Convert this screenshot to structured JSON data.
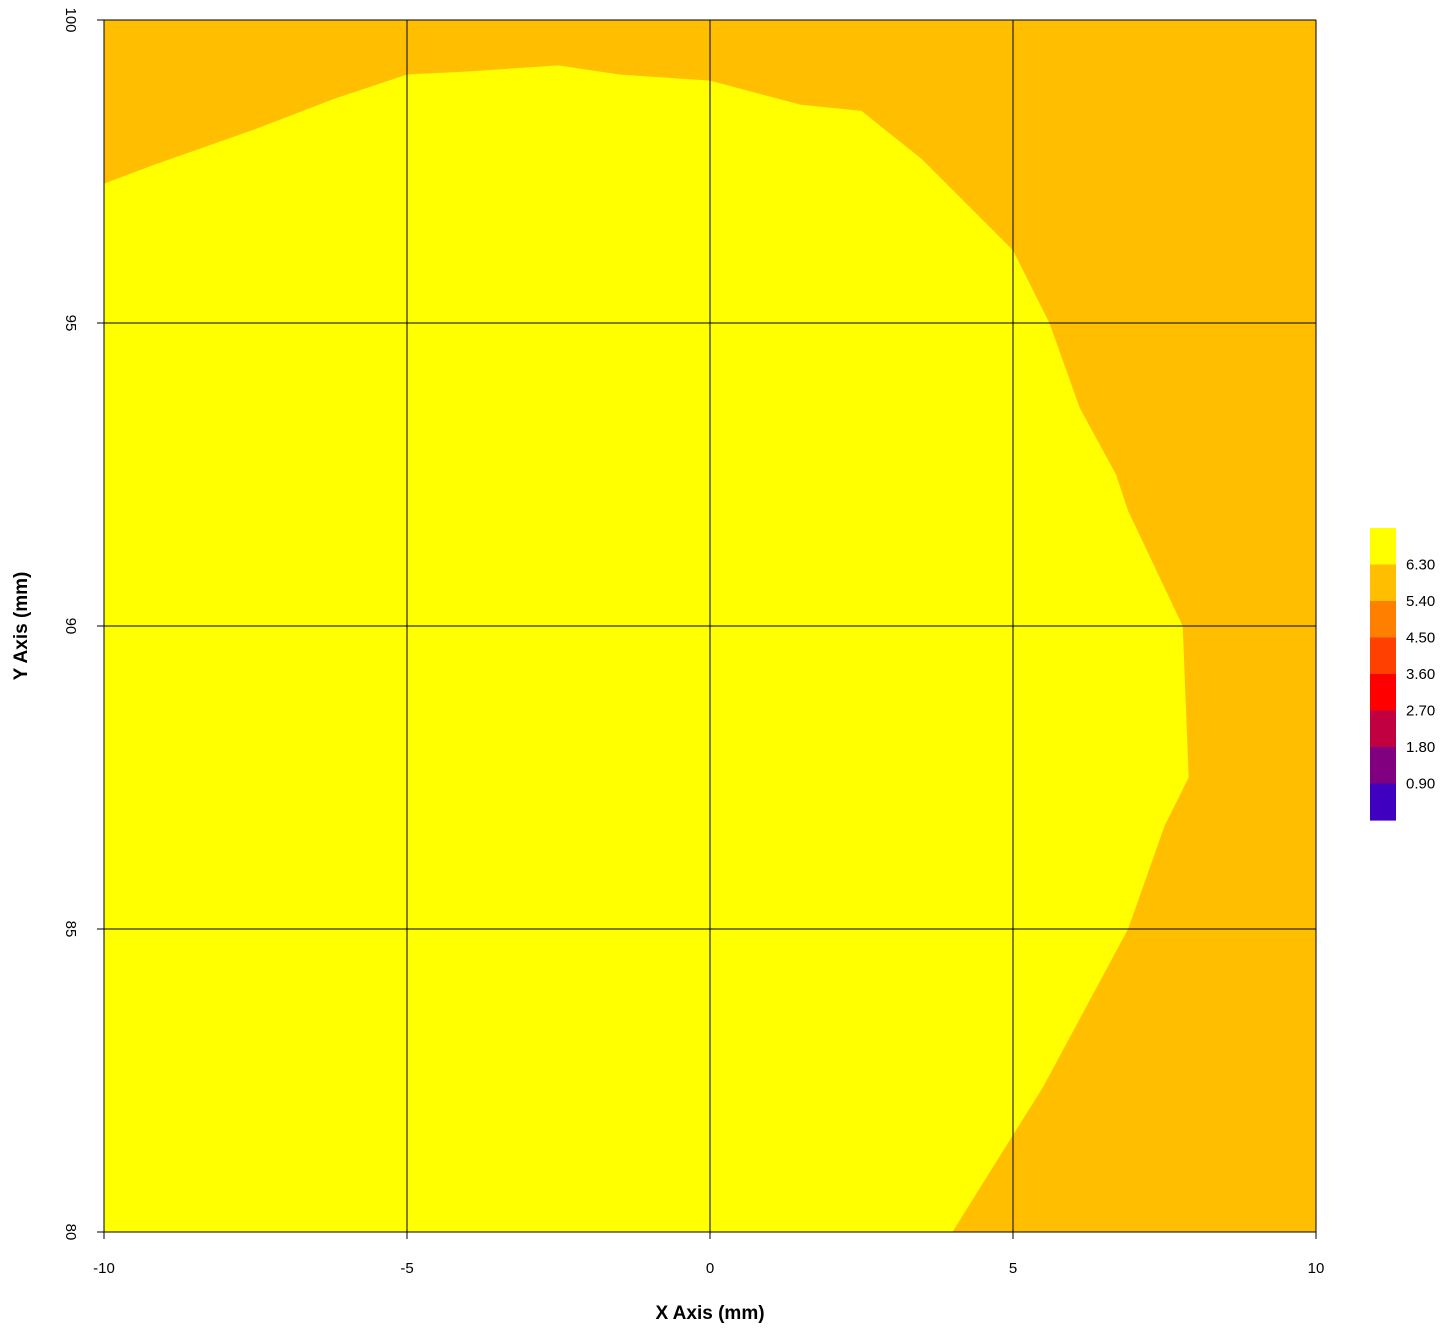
{
  "chart_data": {
    "type": "filled-contour",
    "xlabel": "X Axis (mm)",
    "ylabel": "Y Axis (mm)",
    "xlim": [
      -10,
      10
    ],
    "ylim": [
      80,
      100
    ],
    "x_ticks": [
      "-10",
      "-5",
      "0",
      "5",
      "10"
    ],
    "y_ticks": [
      "80",
      "85",
      "90",
      "95",
      "100"
    ],
    "x_tick_values": [
      -10,
      -5,
      0,
      5,
      10
    ],
    "y_tick_values": [
      80,
      85,
      90,
      95,
      100
    ],
    "grid": true,
    "legend_placement": "right",
    "regions": [
      {
        "level": "above 6.30",
        "color": "#ffff00",
        "boundary": [
          [
            -10,
            97.3
          ],
          [
            -9.2,
            97.6
          ],
          [
            -7.5,
            98.2
          ],
          [
            -6.2,
            98.7
          ],
          [
            -5,
            99.1
          ],
          [
            -4,
            99.15
          ],
          [
            -2.5,
            99.25
          ],
          [
            -1.5,
            99.1
          ],
          [
            0,
            99.0
          ],
          [
            1.5,
            98.6
          ],
          [
            2.5,
            98.5
          ],
          [
            3.5,
            97.7
          ],
          [
            5,
            96.2
          ],
          [
            5.6,
            95.0
          ],
          [
            6.1,
            93.6
          ],
          [
            6.7,
            92.5
          ],
          [
            6.9,
            91.9
          ],
          [
            7.8,
            90.0
          ],
          [
            7.9,
            87.5
          ],
          [
            7.5,
            86.7
          ],
          [
            6.9,
            85.0
          ],
          [
            5.5,
            82.4
          ],
          [
            5.0,
            81.6
          ],
          [
            4.0,
            80.0
          ],
          [
            -10,
            80.0
          ]
        ]
      },
      {
        "level": "5.40 - 6.30",
        "color": "#ffbf00",
        "boundary": "remainder"
      }
    ],
    "legend": {
      "breaks": [
        "6.30",
        "5.40",
        "4.50",
        "3.60",
        "2.70",
        "1.80",
        "0.90"
      ],
      "colors": [
        "#ffff00",
        "#ffbf00",
        "#ff7f00",
        "#ff4000",
        "#ff0000",
        "#c00040",
        "#800080",
        "#4000c0"
      ]
    }
  }
}
